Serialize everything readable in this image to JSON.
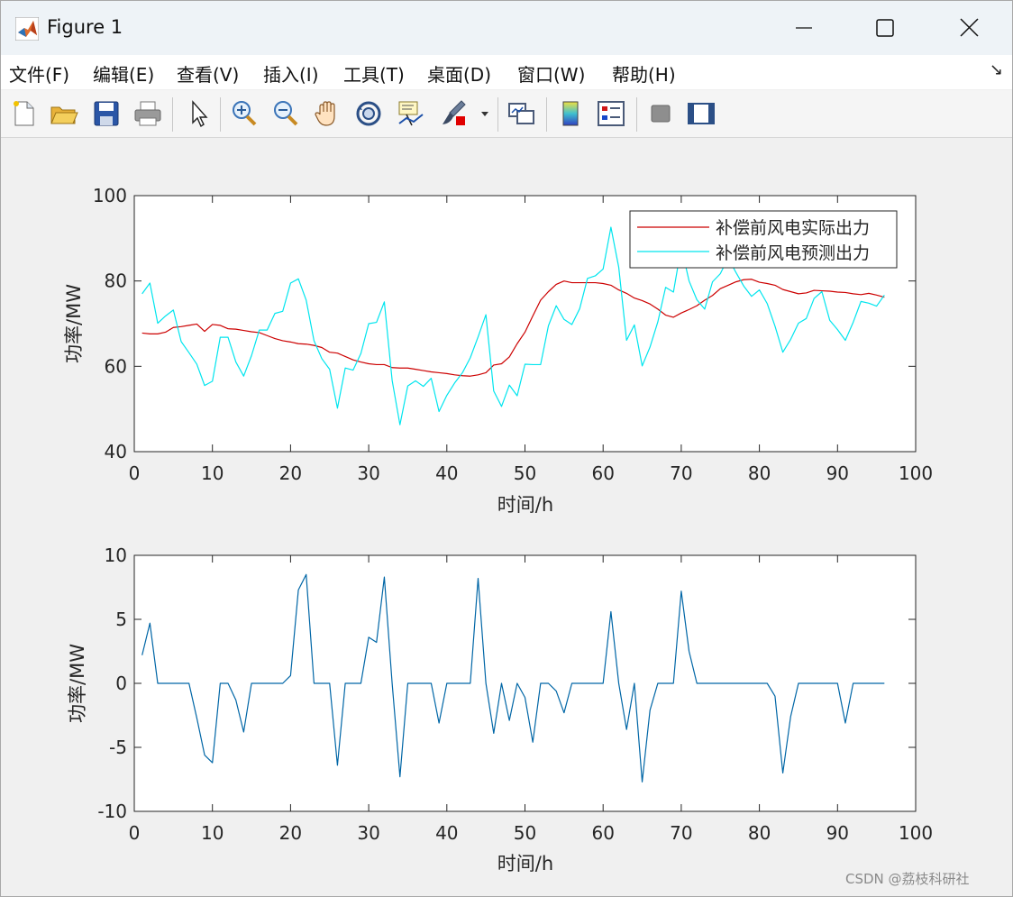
{
  "window": {
    "title": "Figure 1",
    "menu": [
      "文件(F)",
      "编辑(E)",
      "查看(V)",
      "插入(I)",
      "工具(T)",
      "桌面(D)",
      "窗口(W)",
      "帮助(H)"
    ],
    "toolbar_icons": [
      "new-figure-icon",
      "open-file-icon",
      "save-icon",
      "print-icon",
      "pointer-icon",
      "zoom-in-icon",
      "zoom-out-icon",
      "pan-hand-icon",
      "rotate-3d-icon",
      "data-cursor-icon",
      "brush-icon",
      "brush-dropdown-icon",
      "link-plot-icon",
      "colorbar-icon",
      "legend-icon",
      "hide-plot-tools-icon",
      "show-plot-tools-icon"
    ],
    "watermark": "CSDN @荔枝科研社"
  },
  "colors": {
    "actual": "#cc0000",
    "forecast": "#00e5ee",
    "difference": "#0066a6"
  },
  "chart_data": [
    {
      "type": "line",
      "title": "",
      "xlabel": "时间/h",
      "ylabel": "功率/MW",
      "xlim": [
        0,
        100
      ],
      "ylim": [
        40,
        100
      ],
      "xticks": [
        0,
        10,
        20,
        30,
        40,
        50,
        60,
        70,
        80,
        90,
        100
      ],
      "yticks": [
        40,
        60,
        80,
        100
      ],
      "legend_position": "top-right",
      "x": [
        1,
        2,
        3,
        4,
        5,
        6,
        7,
        8,
        9,
        10,
        11,
        12,
        13,
        14,
        15,
        16,
        17,
        18,
        19,
        20,
        21,
        22,
        23,
        24,
        25,
        26,
        27,
        28,
        29,
        30,
        31,
        32,
        33,
        34,
        35,
        36,
        37,
        38,
        39,
        40,
        41,
        42,
        43,
        44,
        45,
        46,
        47,
        48,
        49,
        50,
        51,
        52,
        53,
        54,
        55,
        56,
        57,
        58,
        59,
        60,
        61,
        62,
        63,
        64,
        65,
        66,
        67,
        68,
        69,
        70,
        71,
        72,
        73,
        74,
        75,
        76,
        77,
        78,
        79,
        80,
        81,
        82,
        83,
        84,
        85,
        86,
        87,
        88,
        89,
        90,
        91,
        92,
        93,
        94,
        95,
        96
      ],
      "series": [
        {
          "name": "补偿前风电实际出力",
          "color": "#cc0000",
          "values": [
            67.8,
            67.6,
            67.6,
            68.0,
            69.1,
            69.3,
            69.6,
            69.9,
            68.2,
            69.8,
            69.6,
            68.8,
            68.7,
            68.4,
            68.1,
            67.9,
            67.2,
            66.5,
            66.0,
            65.7,
            65.3,
            65.2,
            64.9,
            64.4,
            63.3,
            63.1,
            62.3,
            61.5,
            61.0,
            60.6,
            60.4,
            60.4,
            59.7,
            59.6,
            59.6,
            59.3,
            59.0,
            58.7,
            58.5,
            58.3,
            58.0,
            57.8,
            57.7,
            58.0,
            58.5,
            60.3,
            60.6,
            62.2,
            65.3,
            68.0,
            71.8,
            75.5,
            77.5,
            79.2,
            80.0,
            79.6,
            79.6,
            79.6,
            79.6,
            79.4,
            79.0,
            77.9,
            77.1,
            76.0,
            75.4,
            74.6,
            73.4,
            72.0,
            71.5,
            72.5,
            73.3,
            74.2,
            75.5,
            76.6,
            78.2,
            79.0,
            79.8,
            80.3,
            80.4,
            79.7,
            79.4,
            79.0,
            78.0,
            77.5,
            77.0,
            77.2,
            77.8,
            77.7,
            77.6,
            77.4,
            77.3,
            77.0,
            76.8,
            77.1,
            76.7,
            76.2
          ]
        },
        {
          "name": "补偿前风电预测出力",
          "color": "#00e5ee",
          "values": [
            77.0,
            79.5,
            70.1,
            71.8,
            73.2,
            65.8,
            63.2,
            60.5,
            55.5,
            56.5,
            66.8,
            66.8,
            61.0,
            57.7,
            62.5,
            68.5,
            68.5,
            72.4,
            72.9,
            79.5,
            80.5,
            75.5,
            66.0,
            61.8,
            59.3,
            50.2,
            59.6,
            59.1,
            63.0,
            70.0,
            70.3,
            75.1,
            56.7,
            46.3,
            55.4,
            56.6,
            55.3,
            57.2,
            49.4,
            53.2,
            56.1,
            58.5,
            62.0,
            66.9,
            72.1,
            54.2,
            50.6,
            55.6,
            53.1,
            60.5,
            60.4,
            60.4,
            69.5,
            74.2,
            71.0,
            69.8,
            73.5,
            80.6,
            81.2,
            82.8,
            92.6,
            83.2,
            66.1,
            69.7,
            60.1,
            64.5,
            70.4,
            78.5,
            77.4,
            88.0,
            80.0,
            75.6,
            73.4,
            79.8,
            81.7,
            85.4,
            82.0,
            78.8,
            76.4,
            77.9,
            74.7,
            69.4,
            63.3,
            66.3,
            70.1,
            71.2,
            75.9,
            77.5,
            70.8,
            68.6,
            66.1,
            70.3,
            75.2,
            74.8,
            74.1,
            76.7
          ]
        }
      ]
    },
    {
      "type": "line",
      "title": "",
      "xlabel": "时间/h",
      "ylabel": "功率/MW",
      "xlim": [
        0,
        100
      ],
      "ylim": [
        -10,
        10
      ],
      "xticks": [
        0,
        10,
        20,
        30,
        40,
        50,
        60,
        70,
        80,
        90,
        100
      ],
      "yticks": [
        -10,
        -5,
        0,
        5,
        10
      ],
      "x": [
        1,
        2,
        3,
        4,
        5,
        6,
        7,
        8,
        9,
        10,
        11,
        12,
        13,
        14,
        15,
        16,
        17,
        18,
        19,
        20,
        21,
        22,
        23,
        24,
        25,
        26,
        27,
        28,
        29,
        30,
        31,
        32,
        33,
        34,
        35,
        36,
        37,
        38,
        39,
        40,
        41,
        42,
        43,
        44,
        45,
        46,
        47,
        48,
        49,
        50,
        51,
        52,
        53,
        54,
        55,
        56,
        57,
        58,
        59,
        60,
        61,
        62,
        63,
        64,
        65,
        66,
        67,
        68,
        69,
        70,
        71,
        72,
        73,
        74,
        75,
        76,
        77,
        78,
        79,
        80,
        81,
        82,
        83,
        84,
        85,
        86,
        87,
        88,
        89,
        90,
        91,
        92,
        93,
        94,
        95,
        96
      ],
      "series": [
        {
          "color": "#0066a6",
          "values": [
            2.2,
            4.7,
            0,
            0,
            0,
            0,
            0,
            -2.7,
            -5.6,
            -6.2,
            0,
            0,
            -1.3,
            -3.8,
            0,
            0,
            0,
            0,
            0,
            0.6,
            7.3,
            8.5,
            0,
            0,
            0,
            -6.4,
            0,
            0,
            0,
            3.6,
            3.2,
            8.3,
            0,
            -7.3,
            0,
            0,
            0,
            0,
            -3.1,
            0,
            0,
            0,
            0,
            8.2,
            0,
            -3.9,
            0,
            -2.9,
            0,
            -1.1,
            -4.6,
            0,
            0,
            -0.6,
            -2.3,
            0,
            0,
            0,
            0,
            0,
            5.6,
            0,
            -3.6,
            0,
            -7.7,
            -2.1,
            0,
            0,
            0,
            7.2,
            2.5,
            0,
            0,
            0,
            0,
            0,
            0,
            0,
            0,
            0,
            0,
            -1.0,
            -7.0,
            -2.6,
            0,
            0,
            0,
            0,
            0,
            0,
            -3.1,
            0,
            0,
            0,
            0,
            0
          ]
        }
      ]
    }
  ]
}
